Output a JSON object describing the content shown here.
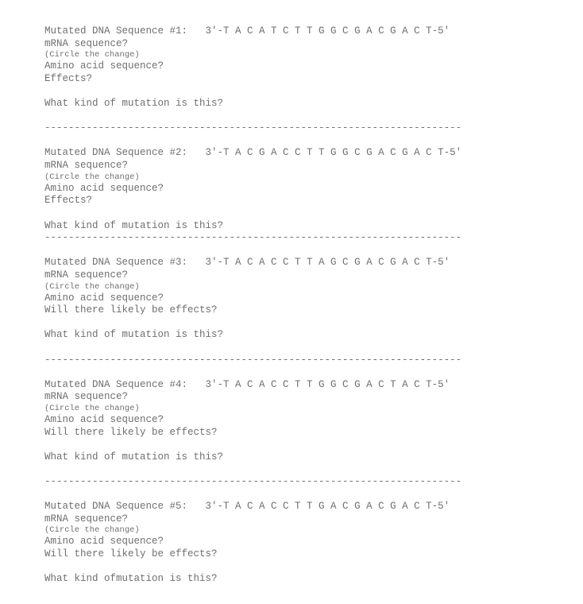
{
  "text_color": "#6f6f6f",
  "background_color": "#ffffff",
  "font_family": "Courier New",
  "font_size_main": 12.5,
  "font_size_small": 10.5,
  "divider": "----------------------------------------------------------------------",
  "questions": {
    "mrna": "mRNA sequence?",
    "circle": "(Circle the change)",
    "aa": "Amino acid sequence?",
    "effects": "Effects?",
    "will_effects": "Will there likely be effects?",
    "kind": "What kind of mutation is this?",
    "kind_typo": "What kind ofmutation is this?"
  },
  "items": [
    {
      "header": "Mutated DNA Sequence #1:   3'-T A C A T C T T G G C G A C G A C T-5'",
      "effects_key": "effects",
      "kind_key": "kind",
      "trailing_blank": true
    },
    {
      "header": "Mutated DNA Sequence #2:   3'-T A C G A C C T T G G C G A C G A C T-5'",
      "effects_key": "effects",
      "kind_key": "kind",
      "trailing_blank": false
    },
    {
      "header": "Mutated DNA Sequence #3:   3'-T A C A C C T T A G C G A C G A C T-5'",
      "effects_key": "will_effects",
      "kind_key": "kind",
      "trailing_blank": true
    },
    {
      "header": "Mutated DNA Sequence #4:   3'-T A C A C C T T G G C G A C T A C T-5'",
      "effects_key": "will_effects",
      "kind_key": "kind",
      "trailing_blank": true
    },
    {
      "header": "Mutated DNA Sequence #5:   3'-T A C A C C T T G A C G A C G A C T-5'",
      "effects_key": "will_effects",
      "kind_key": "kind_typo",
      "trailing_blank": false
    }
  ]
}
